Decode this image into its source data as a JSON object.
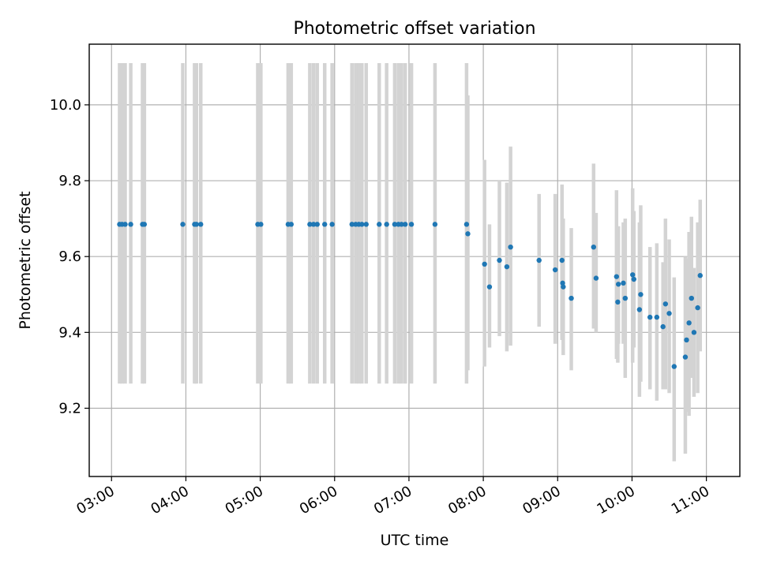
{
  "chart_data": {
    "type": "scatter",
    "title": "Photometric offset variation",
    "xlabel": "UTC time",
    "ylabel": "Photometric offset",
    "x_ticks": [
      "03:00",
      "04:00",
      "05:00",
      "06:00",
      "07:00",
      "08:00",
      "09:00",
      "10:00",
      "11:00"
    ],
    "x_tick_minutes": [
      180,
      240,
      300,
      360,
      420,
      480,
      540,
      600,
      660
    ],
    "xlim_minutes": [
      162,
      687
    ],
    "xlim": [
      "02:42",
      "11:27"
    ],
    "y_ticks": [
      "9.2",
      "9.4",
      "9.6",
      "9.8",
      "10.0"
    ],
    "y_tick_values": [
      9.2,
      9.4,
      9.6,
      9.8,
      10.0
    ],
    "ylim": [
      9.02,
      10.16
    ],
    "grid": true,
    "colors": {
      "marker": "#1f77b4",
      "errorbar": "#d3d3d3"
    },
    "series": [
      {
        "time_minutes": [
          186.5,
          188.5,
          191,
          195.5,
          205,
          206.5,
          237.5,
          247,
          248.5,
          252,
          298,
          300.5,
          322.5,
          325,
          340,
          343,
          346,
          352,
          358,
          374,
          377,
          379.5,
          382,
          385.5,
          396,
          402,
          408.5,
          411.5,
          414,
          417,
          422,
          441,
          466.5,
          467.5
        ],
        "offset": [
          9.685,
          9.685,
          9.685,
          9.685,
          9.685,
          9.685,
          9.685,
          9.685,
          9.685,
          9.685,
          9.685,
          9.685,
          9.685,
          9.685,
          9.685,
          9.685,
          9.685,
          9.685,
          9.685,
          9.685,
          9.685,
          9.685,
          9.685,
          9.685,
          9.685,
          9.685,
          9.685,
          9.685,
          9.685,
          9.685,
          9.685,
          9.685,
          9.685,
          9.66
        ],
        "err_low": [
          9.265,
          9.265,
          9.265,
          9.265,
          9.265,
          9.265,
          9.265,
          9.265,
          9.265,
          9.265,
          9.265,
          9.265,
          9.265,
          9.265,
          9.265,
          9.265,
          9.265,
          9.265,
          9.265,
          9.265,
          9.265,
          9.265,
          9.265,
          9.265,
          9.265,
          9.265,
          9.265,
          9.265,
          9.265,
          9.265,
          9.265,
          9.265,
          9.265,
          9.3
        ],
        "err_high": [
          10.11,
          10.11,
          10.11,
          10.11,
          10.11,
          10.11,
          10.11,
          10.11,
          10.11,
          10.11,
          10.11,
          10.11,
          10.11,
          10.11,
          10.11,
          10.11,
          10.11,
          10.11,
          10.11,
          10.11,
          10.11,
          10.11,
          10.11,
          10.11,
          10.11,
          10.11,
          10.11,
          10.11,
          10.11,
          10.11,
          10.11,
          10.11,
          10.11,
          10.025
        ]
      },
      {
        "time_minutes": [
          481,
          485,
          493,
          499,
          502,
          525,
          538,
          543.5,
          544,
          544.5,
          551,
          569,
          571,
          587.5,
          588.5,
          589,
          593,
          594.5,
          600.5,
          601.5,
          606,
          607,
          614.5,
          620,
          625,
          627,
          630,
          634,
          643,
          644,
          646,
          648,
          650,
          653,
          655
        ],
        "offset": [
          9.58,
          9.52,
          9.59,
          9.573,
          9.625,
          9.59,
          9.565,
          9.59,
          9.53,
          9.52,
          9.49,
          9.625,
          9.543,
          9.547,
          9.48,
          9.527,
          9.53,
          9.49,
          9.552,
          9.54,
          9.46,
          9.5,
          9.44,
          9.44,
          9.415,
          9.475,
          9.45,
          9.31,
          9.335,
          9.38,
          9.425,
          9.49,
          9.4,
          9.465,
          9.55
        ],
        "err_low": [
          9.31,
          9.36,
          9.39,
          9.35,
          9.365,
          9.415,
          9.37,
          9.38,
          9.38,
          9.34,
          9.3,
          9.41,
          9.4,
          9.33,
          9.32,
          9.37,
          9.37,
          9.28,
          9.32,
          9.36,
          9.23,
          9.27,
          9.25,
          9.22,
          9.25,
          9.25,
          9.24,
          9.06,
          9.08,
          9.19,
          9.18,
          9.28,
          9.23,
          9.24,
          9.35
        ],
        "err_high": [
          9.855,
          9.685,
          9.8,
          9.795,
          9.89,
          9.765,
          9.765,
          9.79,
          9.7,
          9.7,
          9.675,
          9.845,
          9.715,
          9.775,
          9.645,
          9.68,
          9.69,
          9.7,
          9.78,
          9.72,
          9.69,
          9.735,
          9.625,
          9.635,
          9.585,
          9.7,
          9.645,
          9.545,
          9.6,
          9.595,
          9.665,
          9.705,
          9.57,
          9.69,
          9.75
        ]
      }
    ]
  }
}
